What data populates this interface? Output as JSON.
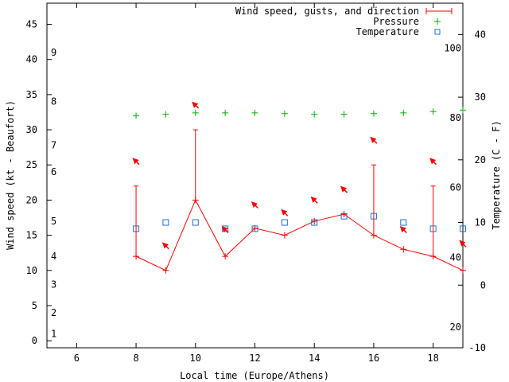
{
  "chart_data": {
    "type": "line",
    "xlabel": "Local time (Europe/Athens)",
    "ylabel_left": "Wind speed (kt - Beaufort)",
    "ylabel_right": "Temperature (C - F)",
    "xlim": [
      5,
      19
    ],
    "ylim_left": [
      -1,
      48
    ],
    "ylim_right": [
      -10,
      45
    ],
    "x_ticks": [
      6,
      8,
      10,
      12,
      14,
      16,
      18
    ],
    "y_ticks_left": [
      0,
      5,
      10,
      15,
      20,
      25,
      30,
      35,
      40,
      45
    ],
    "y_ticks_right": [
      -10,
      0,
      10,
      20,
      30,
      40
    ],
    "beaufort_labels": [
      {
        "label": "1",
        "kt": 1
      },
      {
        "label": "2",
        "kt": 4
      },
      {
        "label": "3",
        "kt": 8
      },
      {
        "label": "4",
        "kt": 12
      },
      {
        "label": "5",
        "kt": 17
      },
      {
        "label": "6",
        "kt": 24
      },
      {
        "label": "7",
        "kt": 27.8
      },
      {
        "label": "8",
        "kt": 34
      },
      {
        "label": "9",
        "kt": 41
      }
    ],
    "fahrenheit_labels": [
      {
        "label": "20",
        "temp_c": -6.7
      },
      {
        "label": "40",
        "temp_c": 4.4
      },
      {
        "label": "60",
        "temp_c": 15.6
      },
      {
        "label": "80",
        "temp_c": 26.7
      },
      {
        "label": "100",
        "temp_c": 37.8
      }
    ],
    "legend": [
      {
        "name": "Wind speed, gusts, and direction",
        "marker": "line-plus"
      },
      {
        "name": "Pressure",
        "marker": "plus"
      },
      {
        "name": "Temperature",
        "marker": "square"
      }
    ],
    "series": [
      {
        "name": "Wind speed",
        "axis": "left",
        "x": [
          8,
          9,
          10,
          11,
          12,
          13,
          14,
          15,
          16,
          17,
          18,
          19
        ],
        "values": [
          12,
          10,
          20,
          12,
          16,
          15,
          17,
          18,
          15,
          13,
          12,
          10
        ]
      },
      {
        "name": "Gusts",
        "axis": "left",
        "x": [
          8,
          10,
          16,
          18
        ],
        "values": [
          22,
          30,
          25,
          22
        ]
      },
      {
        "name": "Pressure",
        "axis": "left",
        "x": [
          8,
          9,
          10,
          11,
          12,
          13,
          14,
          15,
          16,
          17,
          18,
          19
        ],
        "values": [
          32.0,
          32.2,
          32.4,
          32.4,
          32.4,
          32.3,
          32.2,
          32.2,
          32.3,
          32.4,
          32.6,
          32.8
        ]
      },
      {
        "name": "Temperature",
        "axis": "right",
        "x": [
          8,
          9,
          10,
          11,
          12,
          13,
          14,
          15,
          16,
          17,
          18,
          19
        ],
        "values": [
          9,
          10,
          10,
          9,
          9,
          10,
          10,
          11,
          11,
          10,
          9,
          9
        ]
      },
      {
        "name": "Wind direction",
        "axis": "left",
        "x": [
          8,
          9,
          10,
          11,
          12,
          13,
          14,
          15,
          16,
          17,
          18,
          19
        ],
        "y_kt": [
          25.5,
          13.5,
          33.5,
          15.8,
          19.3,
          18.2,
          20.0,
          21.5,
          28.5,
          15.8,
          25.5,
          13.8
        ],
        "direction_deg": [
          315,
          315,
          315,
          315,
          315,
          315,
          315,
          315,
          315,
          315,
          315,
          315
        ]
      }
    ]
  }
}
